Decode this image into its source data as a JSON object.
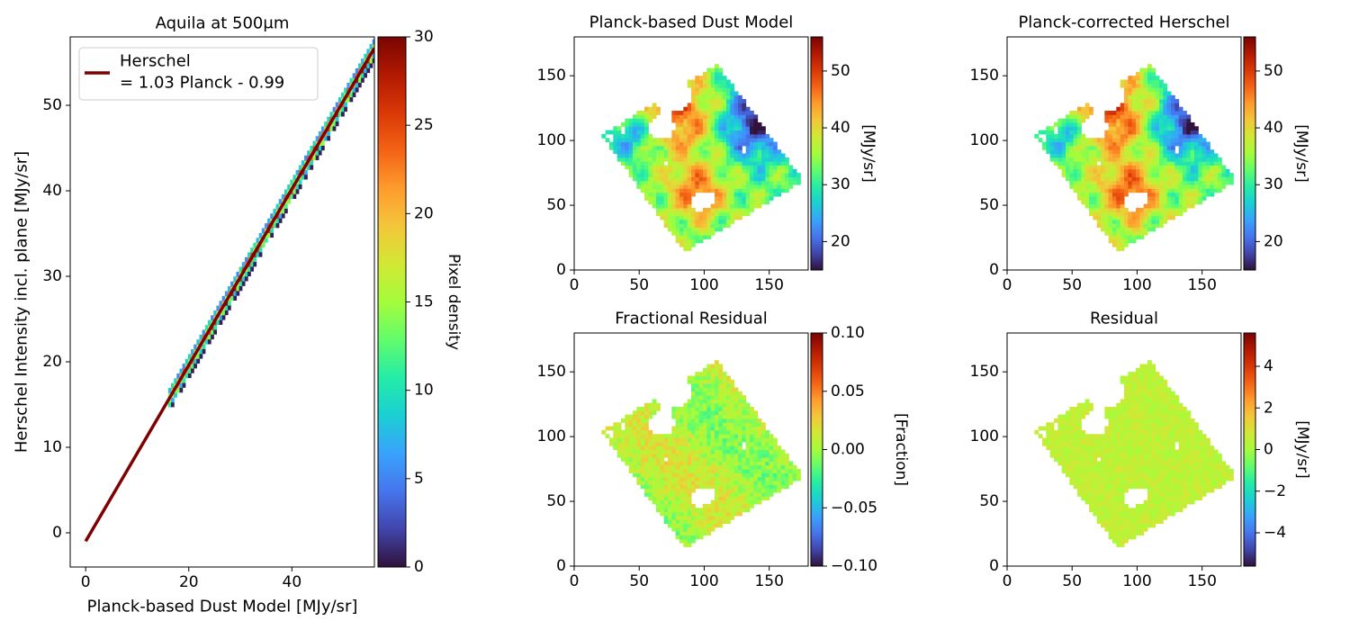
{
  "colors": {
    "fit_line": "#7f0000",
    "colormap": [
      "#30123b",
      "#4145ab",
      "#4675ed",
      "#39a2fc",
      "#1bcfd4",
      "#24eca6",
      "#61fc6c",
      "#a4fc3b",
      "#d1e834",
      "#f3c63a",
      "#fe9b2d",
      "#f36315",
      "#d93806",
      "#b11901",
      "#7a0403"
    ]
  },
  "chart_data": [
    {
      "id": "scatter",
      "type": "heatmap",
      "title": "Aquila at 500μm",
      "xlabel": "Planck-based Dust Model [MJy/sr]",
      "ylabel": "Herschel Intensity incl. plane [MJy/sr]",
      "xlim": [
        -3,
        56
      ],
      "ylim": [
        -4,
        58
      ],
      "xticks": [
        0,
        20,
        40
      ],
      "yticks": [
        0,
        10,
        20,
        30,
        40,
        50
      ],
      "x_range_data": [
        16,
        56
      ],
      "fit": {
        "slope": 1.03,
        "intercept": -0.99,
        "x_start": 0,
        "x_end": 56
      },
      "legend": {
        "position": "top-left",
        "entries": [
          {
            "label_line1": "Herschel",
            "label_line2": "= 1.03 Planck - 0.99"
          }
        ]
      },
      "colorbar": {
        "label": "Pixel density",
        "ticks": [
          0,
          5,
          10,
          15,
          20,
          25,
          30
        ],
        "range": [
          0,
          30
        ]
      }
    },
    {
      "id": "dust-model",
      "type": "heatmap",
      "title": "Planck-based Dust Model",
      "xticks": [
        0,
        50,
        100,
        150
      ],
      "yticks": [
        0,
        50,
        100,
        150
      ],
      "xlim": [
        0,
        180
      ],
      "ylim": [
        0,
        180
      ],
      "colorbar": {
        "label": "[MJy/sr]",
        "ticks": [
          20,
          30,
          40,
          50
        ],
        "range": [
          15,
          56
        ]
      }
    },
    {
      "id": "corrected",
      "type": "heatmap",
      "title": "Planck-corrected Herschel",
      "xticks": [
        0,
        50,
        100,
        150
      ],
      "yticks": [
        0,
        50,
        100,
        150
      ],
      "xlim": [
        0,
        180
      ],
      "ylim": [
        0,
        180
      ],
      "colorbar": {
        "label": "[MJy/sr]",
        "ticks": [
          20,
          30,
          40,
          50
        ],
        "range": [
          15,
          56
        ]
      }
    },
    {
      "id": "frac-resid",
      "type": "heatmap",
      "title": "Fractional Residual",
      "xticks": [
        0,
        50,
        100,
        150
      ],
      "yticks": [
        0,
        50,
        100,
        150
      ],
      "xlim": [
        0,
        180
      ],
      "ylim": [
        0,
        180
      ],
      "colorbar": {
        "label": "[Fraction]",
        "ticks": [
          "0.10",
          "0.05",
          "0.00",
          "−0.05",
          "−0.10"
        ],
        "range": [
          -0.1,
          0.1
        ]
      }
    },
    {
      "id": "resid",
      "type": "heatmap",
      "title": "Residual",
      "xticks": [
        0,
        50,
        100,
        150
      ],
      "yticks": [
        0,
        50,
        100,
        150
      ],
      "xlim": [
        0,
        180
      ],
      "ylim": [
        0,
        180
      ],
      "colorbar": {
        "label": "[MJy/sr]",
        "ticks": [
          "4",
          "2",
          "0",
          "−2",
          "−4"
        ],
        "range": [
          -5.6,
          5.6
        ]
      }
    }
  ]
}
